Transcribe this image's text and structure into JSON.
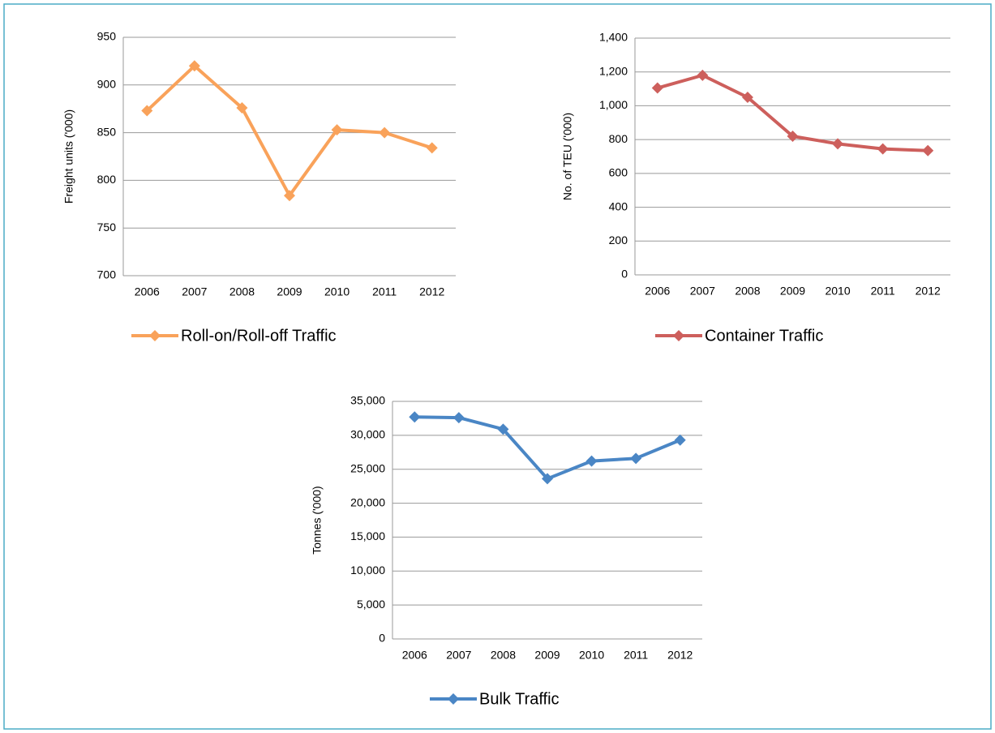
{
  "chart_data": [
    {
      "type": "line",
      "categories": [
        "2006",
        "2007",
        "2008",
        "2009",
        "2010",
        "2011",
        "2012"
      ],
      "y_label": "Freight units ('000)",
      "ylim": [
        700,
        950
      ],
      "yticks": [
        700,
        750,
        800,
        850,
        900,
        950
      ],
      "grid": true,
      "series": [
        {
          "name": "Roll-on/Roll-off Traffic",
          "color": "#f9a25a",
          "values": [
            873,
            920,
            876,
            784,
            853,
            850,
            834
          ]
        }
      ]
    },
    {
      "type": "line",
      "categories": [
        "2006",
        "2007",
        "2008",
        "2009",
        "2010",
        "2011",
        "2012"
      ],
      "y_label": "No. of TEU ('000)",
      "ylim": [
        0,
        1400
      ],
      "yticks": [
        0,
        200,
        400,
        600,
        800,
        {
          "value": 1000,
          "label": "1,000"
        },
        {
          "value": 1200,
          "label": "1,200"
        },
        {
          "value": 1400,
          "label": "1,400"
        }
      ],
      "grid": true,
      "series": [
        {
          "name": "Container Traffic",
          "color": "#cd5f5c",
          "values": [
            1105,
            1180,
            1050,
            820,
            775,
            745,
            735
          ]
        }
      ]
    },
    {
      "type": "line",
      "categories": [
        "2006",
        "2007",
        "2008",
        "2009",
        "2010",
        "2011",
        "2012"
      ],
      "y_label": "Tonnes ('000)",
      "ylim": [
        0,
        35000
      ],
      "yticks": [
        0,
        {
          "value": 5000,
          "label": "5,000"
        },
        {
          "value": 10000,
          "label": "10,000"
        },
        {
          "value": 15000,
          "label": "15,000"
        },
        {
          "value": 20000,
          "label": "20,000"
        },
        {
          "value": 25000,
          "label": "25,000"
        },
        {
          "value": 30000,
          "label": "30,000"
        },
        {
          "value": 35000,
          "label": "35,000"
        }
      ],
      "grid": true,
      "series": [
        {
          "name": "Bulk Traffic",
          "color": "#4a86c5",
          "values": [
            32700,
            32600,
            30900,
            23600,
            26200,
            26600,
            29300
          ]
        }
      ]
    }
  ]
}
